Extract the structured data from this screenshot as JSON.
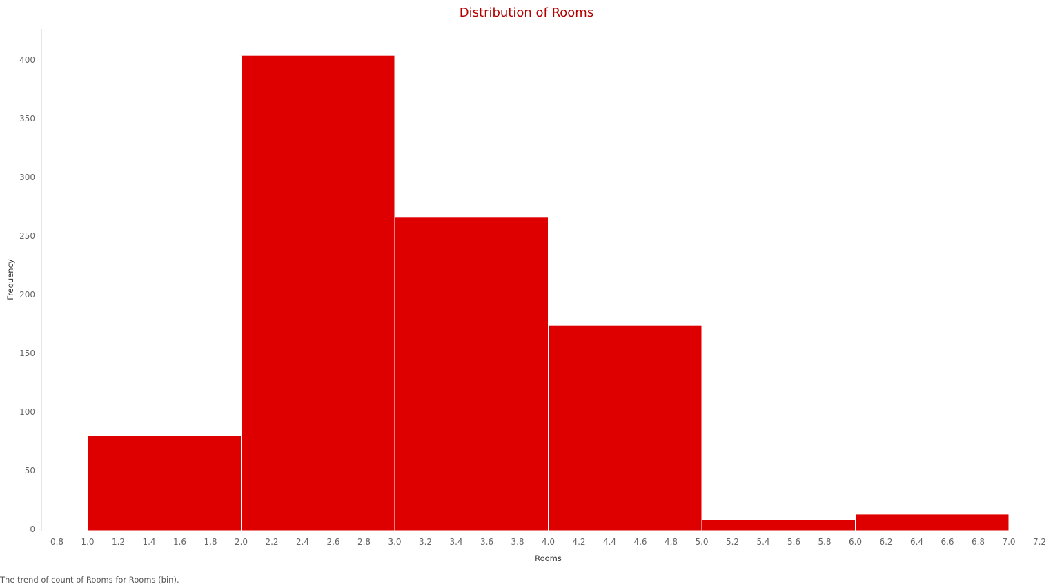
{
  "title": "Distribution of Rooms",
  "caption": "The trend of count of Rooms for Rooms (bin).",
  "colors": {
    "bar": "#de0000",
    "bar_edge": "#ffffff",
    "title": "#b00000",
    "axis_line": "#e6e6e6",
    "tick_text": "#666666"
  },
  "chart_data": {
    "type": "bar",
    "title": "Distribution of Rooms",
    "xlabel": "Rooms",
    "ylabel": "Frequency",
    "bins": [
      {
        "start": 1.0,
        "end": 2.0,
        "value": 80
      },
      {
        "start": 2.0,
        "end": 3.0,
        "value": 404
      },
      {
        "start": 3.0,
        "end": 4.0,
        "value": 266
      },
      {
        "start": 4.0,
        "end": 5.0,
        "value": 174
      },
      {
        "start": 5.0,
        "end": 6.0,
        "value": 8
      },
      {
        "start": 6.0,
        "end": 7.0,
        "value": 13
      }
    ],
    "xlim": [
      0.8,
      7.2
    ],
    "ylim": [
      0,
      400
    ],
    "x_ticks": [
      "0.8",
      "1.0",
      "1.2",
      "1.4",
      "1.6",
      "1.8",
      "2.0",
      "2.2",
      "2.4",
      "2.6",
      "2.8",
      "3.0",
      "3.2",
      "3.4",
      "3.6",
      "3.8",
      "4.0",
      "4.2",
      "4.4",
      "4.6",
      "4.8",
      "5.0",
      "5.2",
      "5.4",
      "5.6",
      "5.8",
      "6.0",
      "6.2",
      "6.4",
      "6.6",
      "6.8",
      "7.0",
      "7.2"
    ],
    "y_ticks": [
      "0",
      "50",
      "100",
      "150",
      "200",
      "250",
      "300",
      "350",
      "400"
    ],
    "grid": false,
    "legend": "none"
  }
}
